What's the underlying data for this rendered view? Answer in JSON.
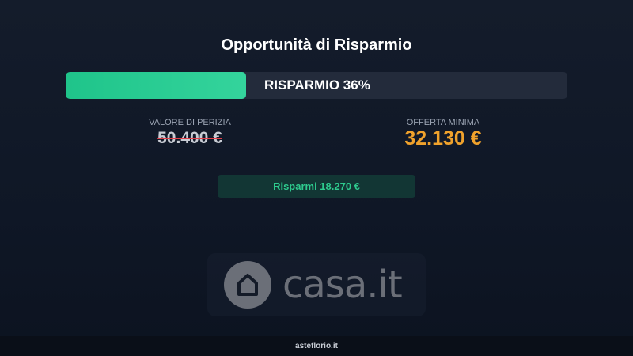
{
  "title": "Opportunità di Risparmio",
  "progress": {
    "label": "RISPARMIO 36%",
    "percent": 36,
    "color": "#2ecf95"
  },
  "appraisal": {
    "label": "VALORE DI PERIZIA",
    "value": "50.400 €"
  },
  "min_offer": {
    "label": "OFFERTA MINIMA",
    "value": "32.130 €",
    "color": "#f0a22c"
  },
  "savings": {
    "label": "Risparmi 18.270 €"
  },
  "logo": {
    "text": "casa.it",
    "icon": "house-icon"
  },
  "footer": {
    "text": "asteflorio.it"
  }
}
